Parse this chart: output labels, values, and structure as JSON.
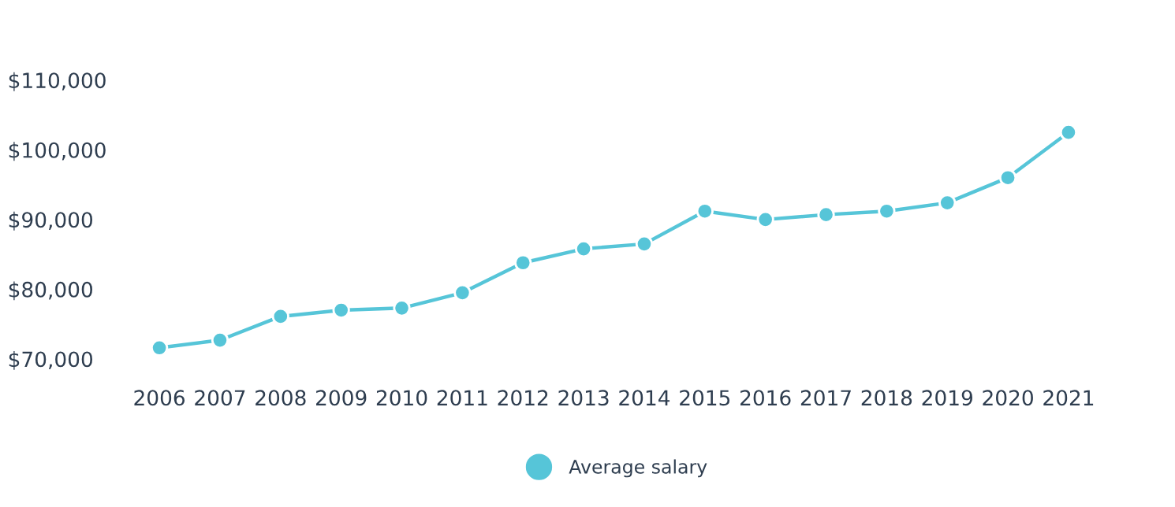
{
  "chart_data": {
    "type": "line",
    "categories": [
      "2006",
      "2007",
      "2008",
      "2009",
      "2010",
      "2011",
      "2012",
      "2013",
      "2014",
      "2015",
      "2016",
      "2017",
      "2018",
      "2019",
      "2020",
      "2021"
    ],
    "series": [
      {
        "name": "Average salary",
        "color": "#56c5d8",
        "values": [
          71600,
          72700,
          76100,
          77000,
          77300,
          79500,
          83800,
          85800,
          86500,
          91200,
          90000,
          90700,
          91200,
          92400,
          96000,
          102500
        ]
      }
    ],
    "ylim": [
      70000,
      110000
    ],
    "yticks": [
      {
        "value": 70000,
        "label": "$70,000"
      },
      {
        "value": 80000,
        "label": "$80,000"
      },
      {
        "value": 90000,
        "label": "$90,000"
      },
      {
        "value": 100000,
        "label": "$100,000"
      },
      {
        "value": 110000,
        "label": "$110,000"
      }
    ],
    "grid": false,
    "legend": "bottom",
    "marker": "circle",
    "line_style": "solid"
  }
}
